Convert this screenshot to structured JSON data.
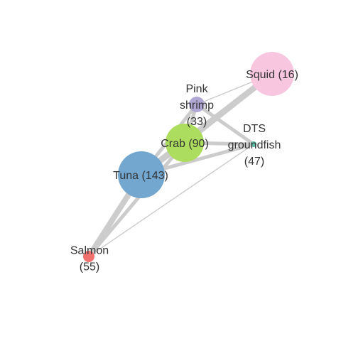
{
  "nodes": [
    {
      "id": "squid",
      "label_lines": [
        "Squid (16)"
      ],
      "color": "#f9c6df"
    },
    {
      "id": "pink-shrimp",
      "label_lines": [
        "Pink",
        "shrimp",
        "(33)"
      ],
      "color": "#b0a7d4"
    },
    {
      "id": "dts-groundfish",
      "label_lines": [
        "DTS",
        "groundfish",
        "(47)"
      ],
      "color": "#5dbfa5"
    },
    {
      "id": "crab",
      "label_lines": [
        "Crab (90)"
      ],
      "color": "#addd5e"
    },
    {
      "id": "tuna",
      "label_lines": [
        "Tuna (143)"
      ],
      "color": "#73a7d0"
    },
    {
      "id": "salmon",
      "label_lines": [
        "Salmon",
        "(55)"
      ],
      "color": "#f1716e"
    }
  ],
  "edges": [
    {
      "source": "tuna",
      "target": "squid",
      "weight": "heavy"
    },
    {
      "source": "crab",
      "target": "squid",
      "weight": "heavy"
    },
    {
      "source": "pink-shrimp",
      "target": "squid",
      "weight": "light"
    },
    {
      "source": "crab",
      "target": "pink-shrimp",
      "weight": "medium"
    },
    {
      "source": "tuna",
      "target": "pink-shrimp",
      "weight": "medium"
    },
    {
      "source": "pink-shrimp",
      "target": "dts-groundfish",
      "weight": "medium"
    },
    {
      "source": "crab",
      "target": "dts-groundfish",
      "weight": "medium"
    },
    {
      "source": "tuna",
      "target": "dts-groundfish",
      "weight": "medium"
    },
    {
      "source": "tuna",
      "target": "crab",
      "weight": "heavy"
    },
    {
      "source": "salmon",
      "target": "tuna",
      "weight": "heavy"
    },
    {
      "source": "salmon",
      "target": "crab",
      "weight": "medium"
    },
    {
      "source": "salmon",
      "target": "dts-groundfish",
      "weight": "light"
    }
  ],
  "edge_color": "#cccccc"
}
